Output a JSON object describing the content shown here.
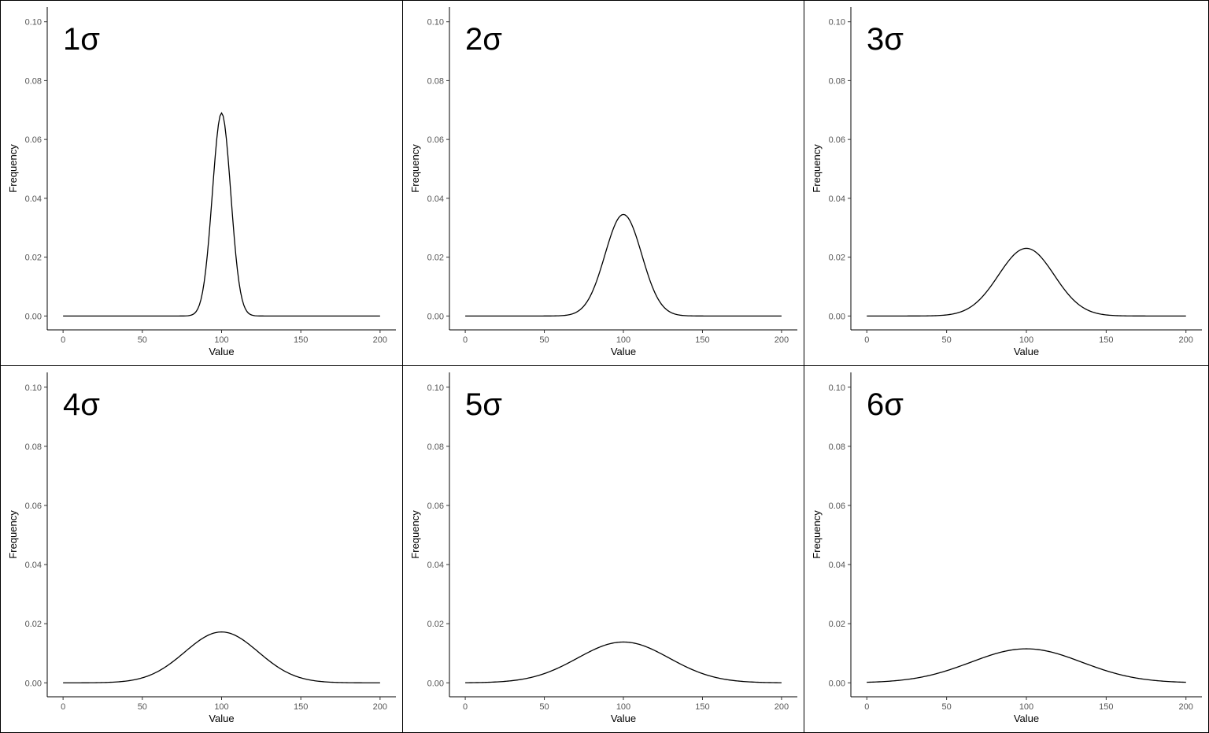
{
  "chart_data": [
    {
      "type": "line",
      "label": "1σ",
      "mean": 100,
      "sigma": 5.8,
      "x_range": [
        0,
        200
      ],
      "xlabel": "Value",
      "ylabel": "Frequency",
      "ylim": [
        0,
        0.105
      ],
      "xticks": [
        0,
        50,
        100,
        150,
        200
      ],
      "yticks": [
        "0.00",
        "0.02",
        "0.04",
        "0.06",
        "0.08",
        "0.10"
      ],
      "peak_frequency": 0.069,
      "grid": false
    },
    {
      "type": "line",
      "label": "2σ",
      "mean": 100,
      "sigma": 11.6,
      "x_range": [
        0,
        200
      ],
      "xlabel": "Value",
      "ylabel": "Frequency",
      "ylim": [
        0,
        0.105
      ],
      "xticks": [
        0,
        50,
        100,
        150,
        200
      ],
      "yticks": [
        "0.00",
        "0.02",
        "0.04",
        "0.06",
        "0.08",
        "0.10"
      ],
      "peak_frequency": 0.0345,
      "grid": false
    },
    {
      "type": "line",
      "label": "3σ",
      "mean": 100,
      "sigma": 17.4,
      "x_range": [
        0,
        200
      ],
      "xlabel": "Value",
      "ylabel": "Frequency",
      "ylim": [
        0,
        0.105
      ],
      "xticks": [
        0,
        50,
        100,
        150,
        200
      ],
      "yticks": [
        "0.00",
        "0.02",
        "0.04",
        "0.06",
        "0.08",
        "0.10"
      ],
      "peak_frequency": 0.023,
      "grid": false
    },
    {
      "type": "line",
      "label": "4σ",
      "mean": 100,
      "sigma": 23.2,
      "x_range": [
        0,
        200
      ],
      "xlabel": "Value",
      "ylabel": "Frequency",
      "ylim": [
        0,
        0.105
      ],
      "xticks": [
        0,
        50,
        100,
        150,
        200
      ],
      "yticks": [
        "0.00",
        "0.02",
        "0.04",
        "0.06",
        "0.08",
        "0.10"
      ],
      "peak_frequency": 0.0172,
      "grid": false
    },
    {
      "type": "line",
      "label": "5σ",
      "mean": 100,
      "sigma": 29.0,
      "x_range": [
        0,
        200
      ],
      "xlabel": "Value",
      "ylabel": "Frequency",
      "ylim": [
        0,
        0.105
      ],
      "xticks": [
        0,
        50,
        100,
        150,
        200
      ],
      "yticks": [
        "0.00",
        "0.02",
        "0.04",
        "0.06",
        "0.08",
        "0.10"
      ],
      "peak_frequency": 0.0138,
      "grid": false
    },
    {
      "type": "line",
      "label": "6σ",
      "mean": 100,
      "sigma": 34.8,
      "x_range": [
        0,
        200
      ],
      "xlabel": "Value",
      "ylabel": "Frequency",
      "ylim": [
        0,
        0.105
      ],
      "xticks": [
        0,
        50,
        100,
        150,
        200
      ],
      "yticks": [
        "0.00",
        "0.02",
        "0.04",
        "0.06",
        "0.08",
        "0.10"
      ],
      "peak_frequency": 0.0115,
      "grid": false
    }
  ]
}
